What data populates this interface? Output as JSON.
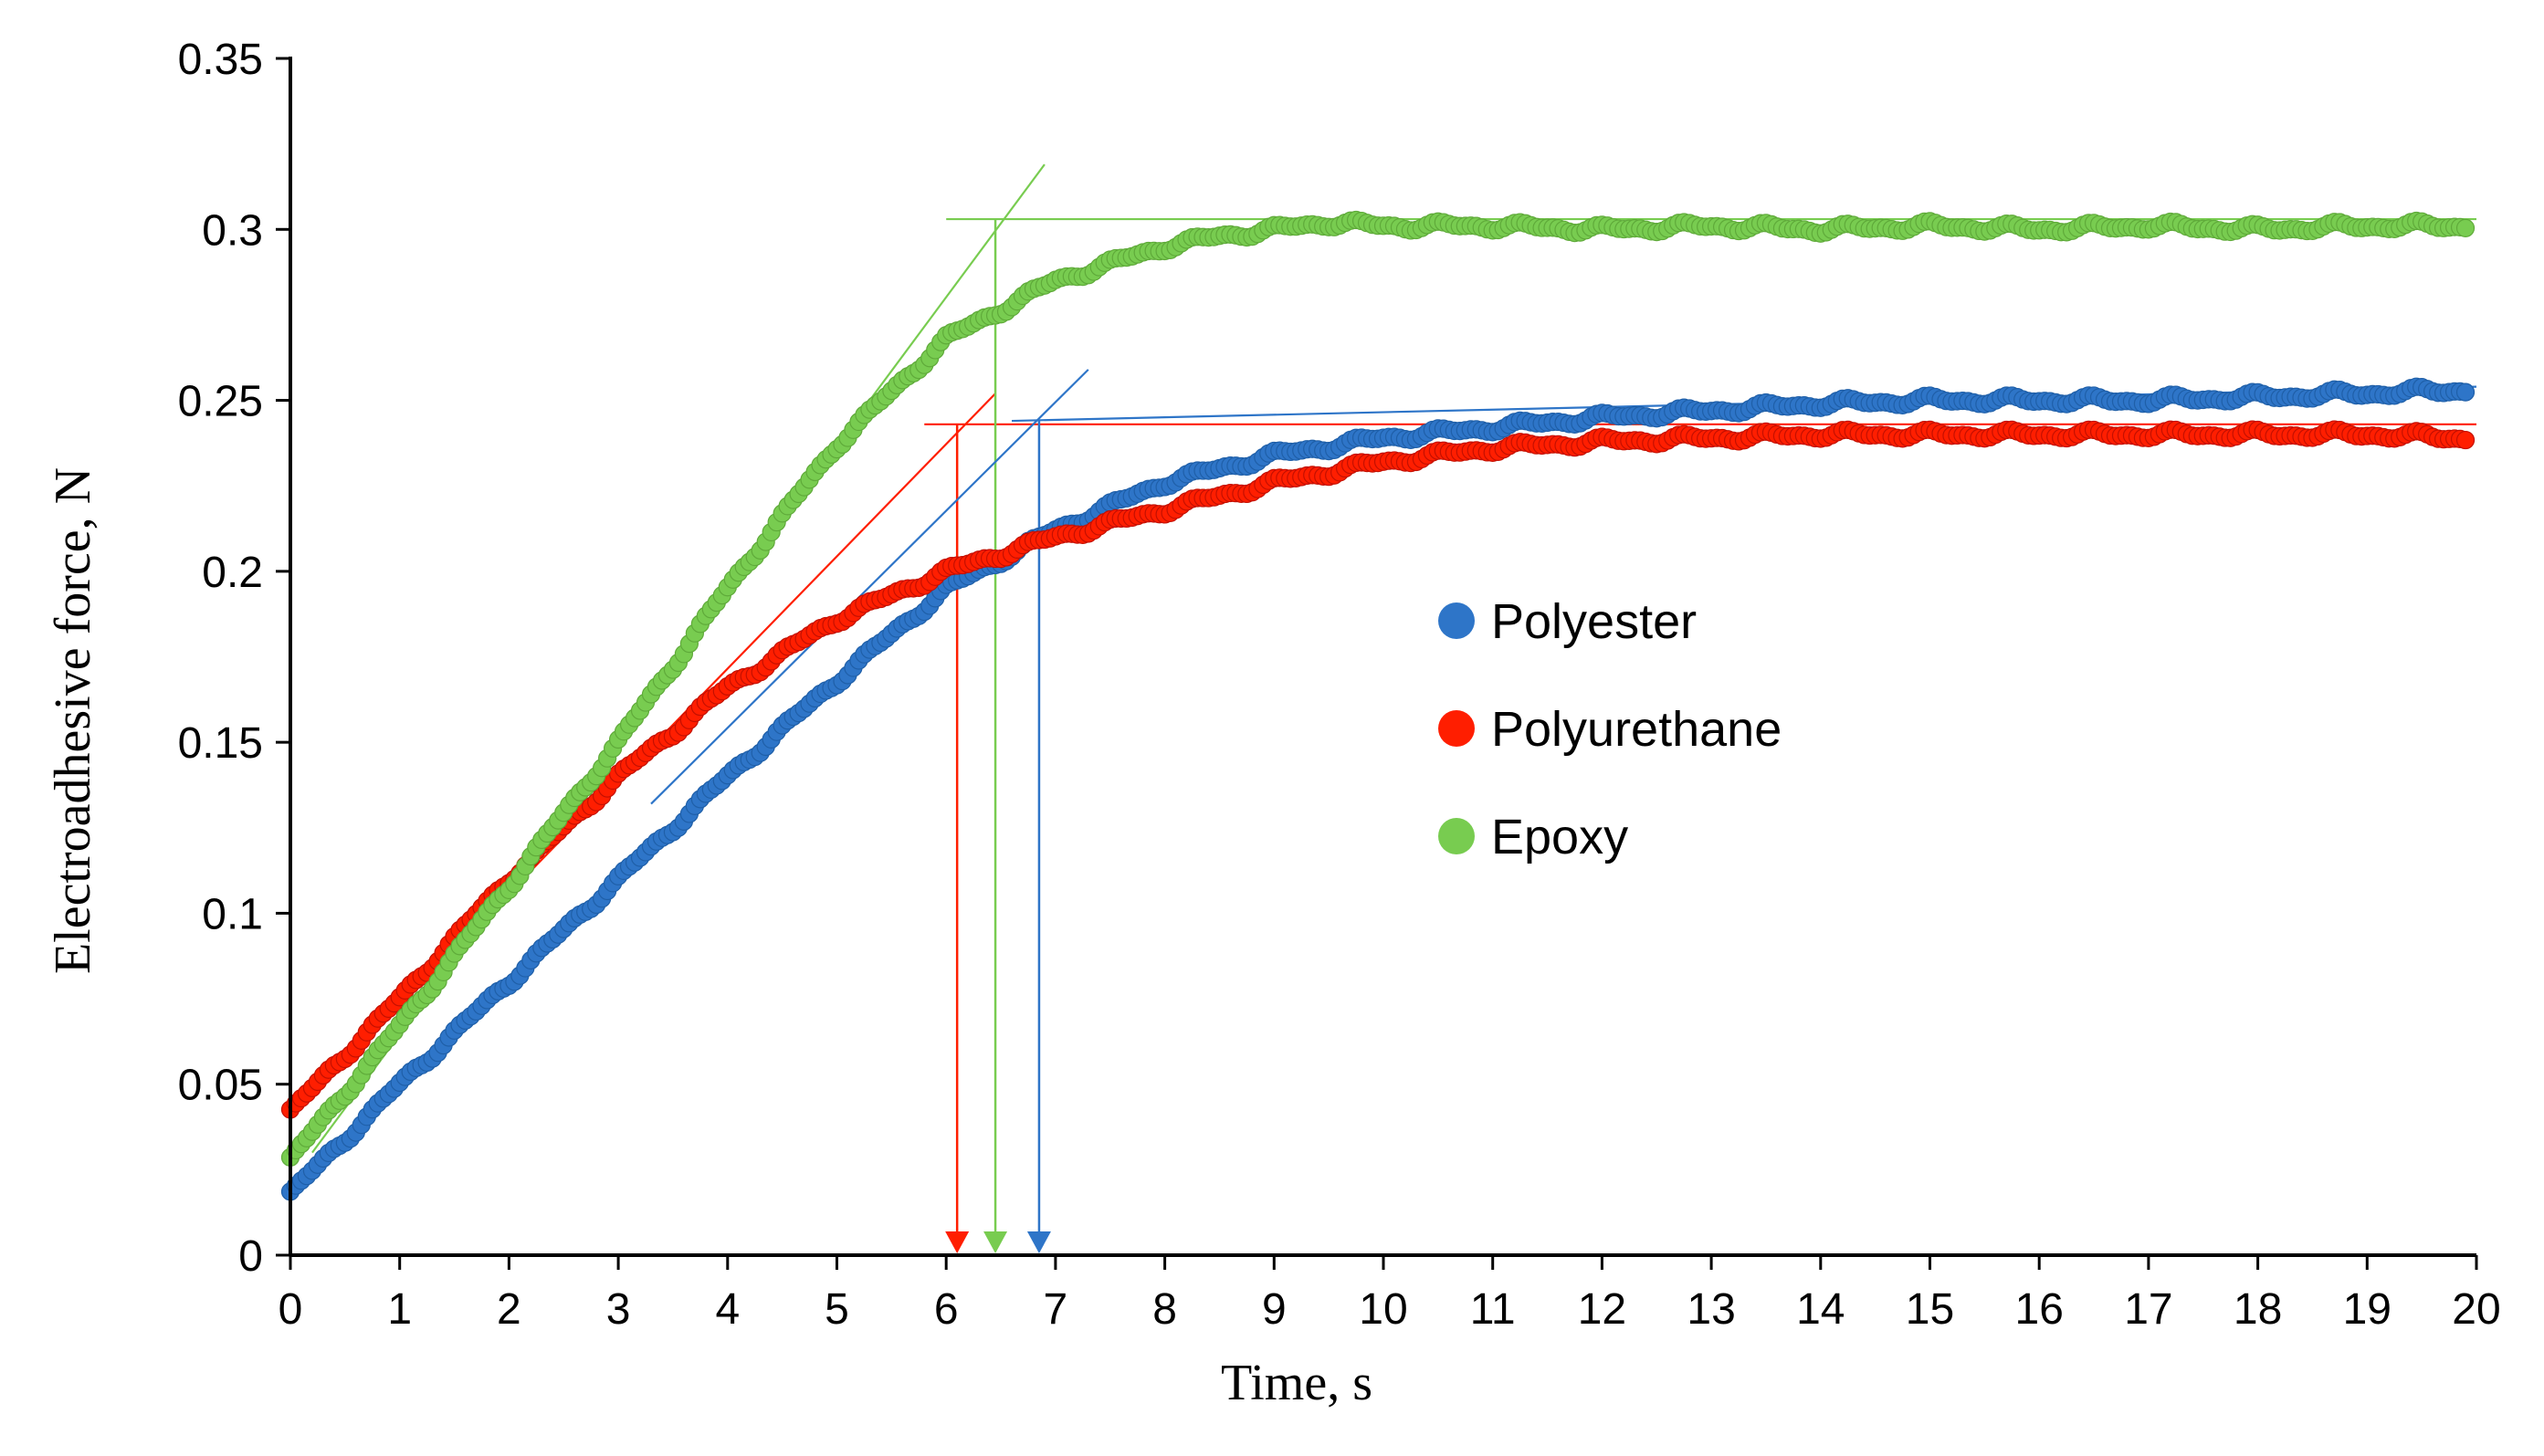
{
  "chart_data": {
    "type": "scatter",
    "title": "",
    "xlabel": "Time, s",
    "ylabel": "Electroadhesive force, N",
    "xlim": [
      0,
      20
    ],
    "ylim": [
      0,
      0.35
    ],
    "x_ticks": [
      "0",
      "1",
      "2",
      "3",
      "4",
      "5",
      "6",
      "7",
      "8",
      "9",
      "10",
      "11",
      "12",
      "13",
      "14",
      "15",
      "16",
      "17",
      "18",
      "19",
      "20"
    ],
    "y_ticks": [
      "0",
      "0.05",
      "0.1",
      "0.15",
      "0.2",
      "0.25",
      "0.3",
      "0.35"
    ],
    "legend_position": "center-right",
    "series": [
      {
        "name": "Polyester",
        "color": "#2E75C8",
        "x": [
          0,
          1,
          2,
          3,
          4,
          5,
          6,
          7,
          8,
          9,
          10,
          11,
          12,
          13,
          14,
          15,
          16,
          17,
          18,
          19,
          19.9
        ],
        "y": [
          0.018,
          0.05,
          0.08,
          0.11,
          0.14,
          0.168,
          0.195,
          0.212,
          0.226,
          0.234,
          0.239,
          0.242,
          0.245,
          0.247,
          0.249,
          0.25,
          0.25,
          0.25,
          0.251,
          0.252,
          0.253
        ]
      },
      {
        "name": "Polyurethane",
        "color": "#FF1E00",
        "x": [
          0,
          1,
          2,
          3,
          4,
          5,
          6,
          7,
          8,
          9,
          10,
          11,
          12,
          13,
          14,
          15,
          16,
          17,
          18,
          19,
          19.9
        ],
        "y": [
          0.042,
          0.075,
          0.11,
          0.14,
          0.166,
          0.186,
          0.2,
          0.21,
          0.218,
          0.226,
          0.232,
          0.236,
          0.238,
          0.239,
          0.24,
          0.24,
          0.24,
          0.24,
          0.24,
          0.24,
          0.239
        ]
      },
      {
        "name": "Epoxy",
        "color": "#78CC50",
        "x": [
          0,
          1,
          2,
          3,
          4,
          5,
          6,
          7,
          8,
          8.5,
          9,
          9.5,
          10,
          11,
          12,
          13,
          14,
          15,
          16,
          17,
          18,
          19,
          19.9
        ],
        "y": [
          0.028,
          0.067,
          0.108,
          0.15,
          0.195,
          0.237,
          0.268,
          0.285,
          0.295,
          0.298,
          0.3,
          0.302,
          0.301,
          0.301,
          0.3,
          0.301,
          0.3,
          0.301,
          0.3,
          0.301,
          0.3,
          0.301,
          0.301
        ]
      }
    ],
    "annotations": [
      {
        "series": "Polyurethane",
        "color": "#FF1E00",
        "tangent": [
          [
            1.0,
            0.073
          ],
          [
            6.45,
            0.252
          ]
        ],
        "plateau": [
          [
            5.8,
            0.243
          ],
          [
            20,
            0.243
          ]
        ],
        "onset_x": 6.1
      },
      {
        "series": "Epoxy",
        "color": "#78CC50",
        "tangent": [
          [
            0.2,
            0.03
          ],
          [
            6.9,
            0.319
          ]
        ],
        "plateau": [
          [
            6.0,
            0.303
          ],
          [
            20,
            0.303
          ]
        ],
        "onset_x": 6.45
      },
      {
        "series": "Polyester",
        "color": "#2E75C8",
        "tangent": [
          [
            3.3,
            0.132
          ],
          [
            7.3,
            0.259
          ]
        ],
        "plateau": [
          [
            6.6,
            0.244
          ],
          [
            20,
            0.254
          ]
        ],
        "onset_x": 6.85
      }
    ]
  }
}
